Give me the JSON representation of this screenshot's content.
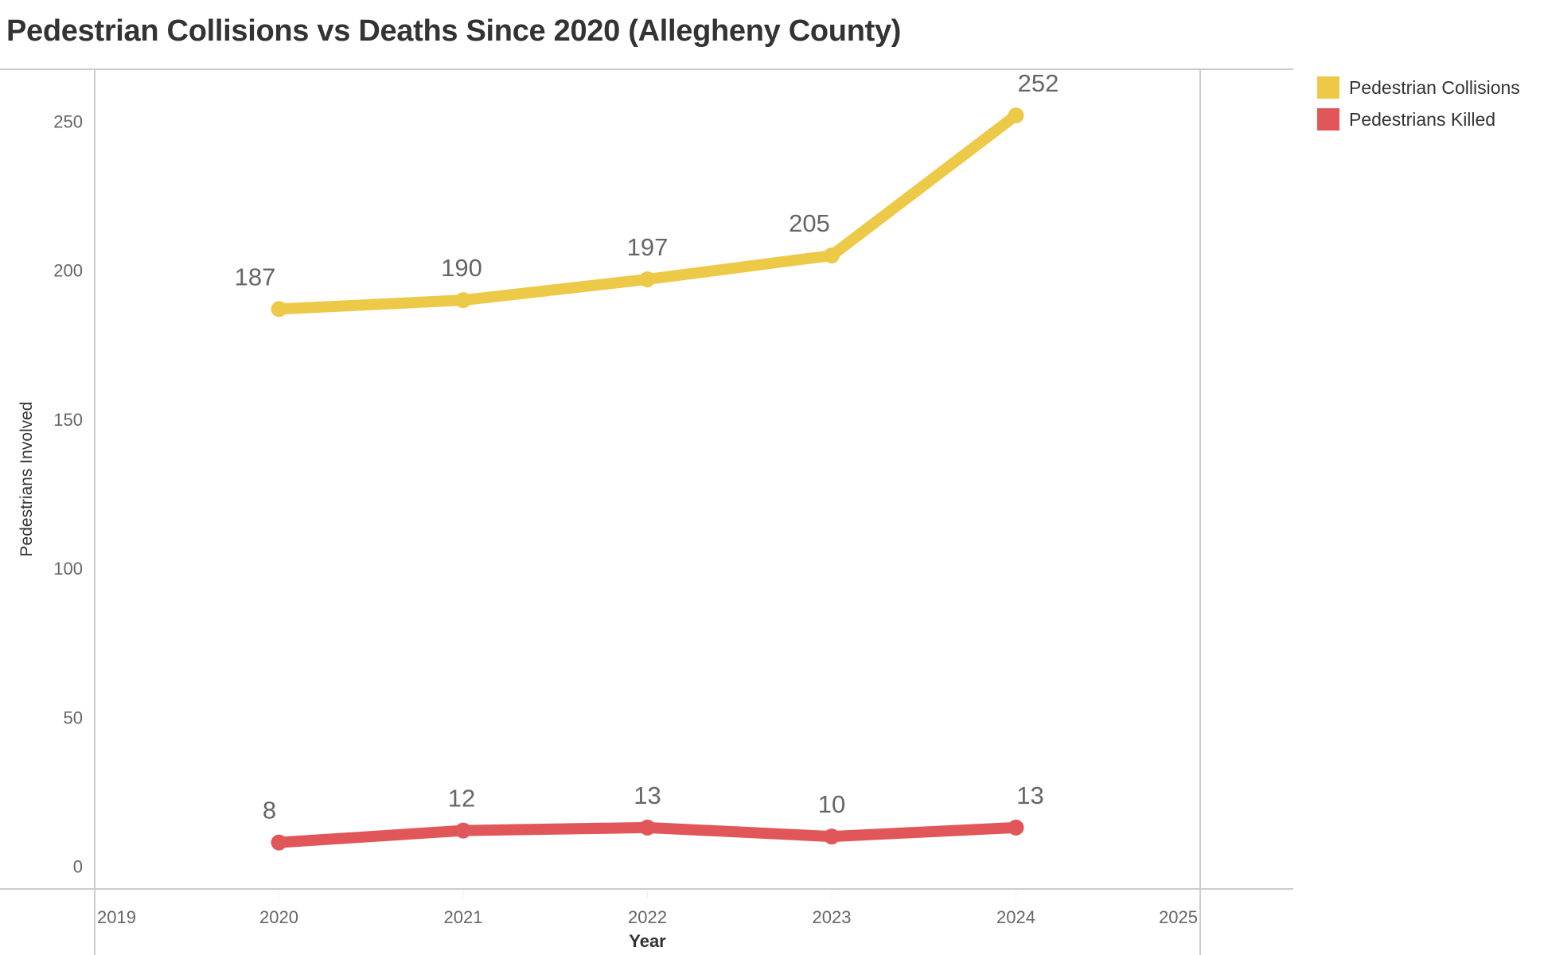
{
  "chart_data": {
    "type": "line",
    "title": "Pedestrian Collisions vs Deaths Since 2020 (Allegheny County)",
    "xlabel": "Year",
    "ylabel": "Pedestrians Involved",
    "x": [
      2020,
      2021,
      2022,
      2023,
      2024
    ],
    "xlim": [
      2019,
      2025
    ],
    "xticks": [
      "2019",
      "2020",
      "2021",
      "2022",
      "2023",
      "2024",
      "2025"
    ],
    "ylim": [
      -7.6,
      267.5
    ],
    "yticks": [
      0,
      50,
      100,
      150,
      200,
      250
    ],
    "grid": false,
    "legend_position": "right",
    "series": [
      {
        "name": "Pedestrian Collisions",
        "color": "#EDC948",
        "values": [
          187,
          190,
          197,
          205,
          252
        ]
      },
      {
        "name": "Pedestrians Killed",
        "color": "#E15759",
        "values": [
          8,
          12,
          13,
          10,
          13
        ]
      }
    ]
  }
}
